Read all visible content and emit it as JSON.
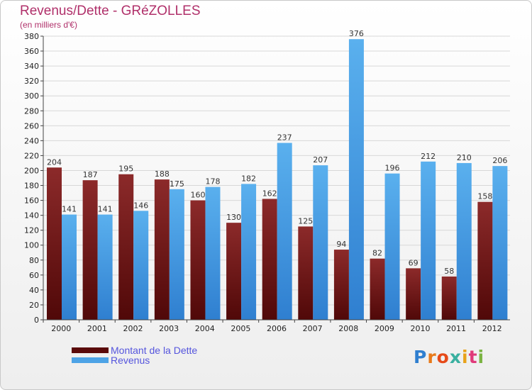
{
  "page": {
    "title": "Revenus/Dette - GRéZOLLES",
    "subtitle": "(en milliers d'€)"
  },
  "legend": [
    {
      "label": "Montant de la Dette",
      "color": "#5a0a0a"
    },
    {
      "label": "Revenus",
      "color": "#4da3e6"
    }
  ],
  "logo": {
    "text": "Proxiti",
    "letter_colors": [
      "#2f7fd0",
      "#e87a1a",
      "#e64a19",
      "#3ab0a0",
      "#e8a21a",
      "#e03a7a",
      "#7bb342"
    ]
  },
  "colors": {
    "debt_bar_top": "#8c2a2a",
    "debt_bar_bottom": "#500808",
    "revenue_bar_top": "#5ab0ee",
    "revenue_bar_bottom": "#2f7fd0",
    "grid": "#d8d8d8",
    "axis": "#444444"
  },
  "chart_data": {
    "type": "bar",
    "title": "Revenus/Dette - GRéZOLLES",
    "subtitle": "(en milliers d'€)",
    "categories": [
      "2000",
      "2001",
      "2002",
      "2003",
      "2004",
      "2005",
      "2006",
      "2007",
      "2008",
      "2009",
      "2010",
      "2011",
      "2012"
    ],
    "series": [
      {
        "name": "Montant de la Dette",
        "values": [
          204,
          187,
          195,
          188,
          160,
          130,
          162,
          125,
          94,
          82,
          69,
          58,
          158
        ]
      },
      {
        "name": "Revenus",
        "values": [
          141,
          141,
          146,
          175,
          178,
          182,
          237,
          207,
          376,
          196,
          212,
          210,
          206
        ]
      }
    ],
    "ylim": [
      0,
      380
    ],
    "yticks": [
      0,
      20,
      40,
      60,
      80,
      100,
      120,
      140,
      160,
      180,
      200,
      220,
      240,
      260,
      280,
      300,
      320,
      340,
      360,
      380
    ],
    "grid": true,
    "legend_position": "bottom-left"
  }
}
